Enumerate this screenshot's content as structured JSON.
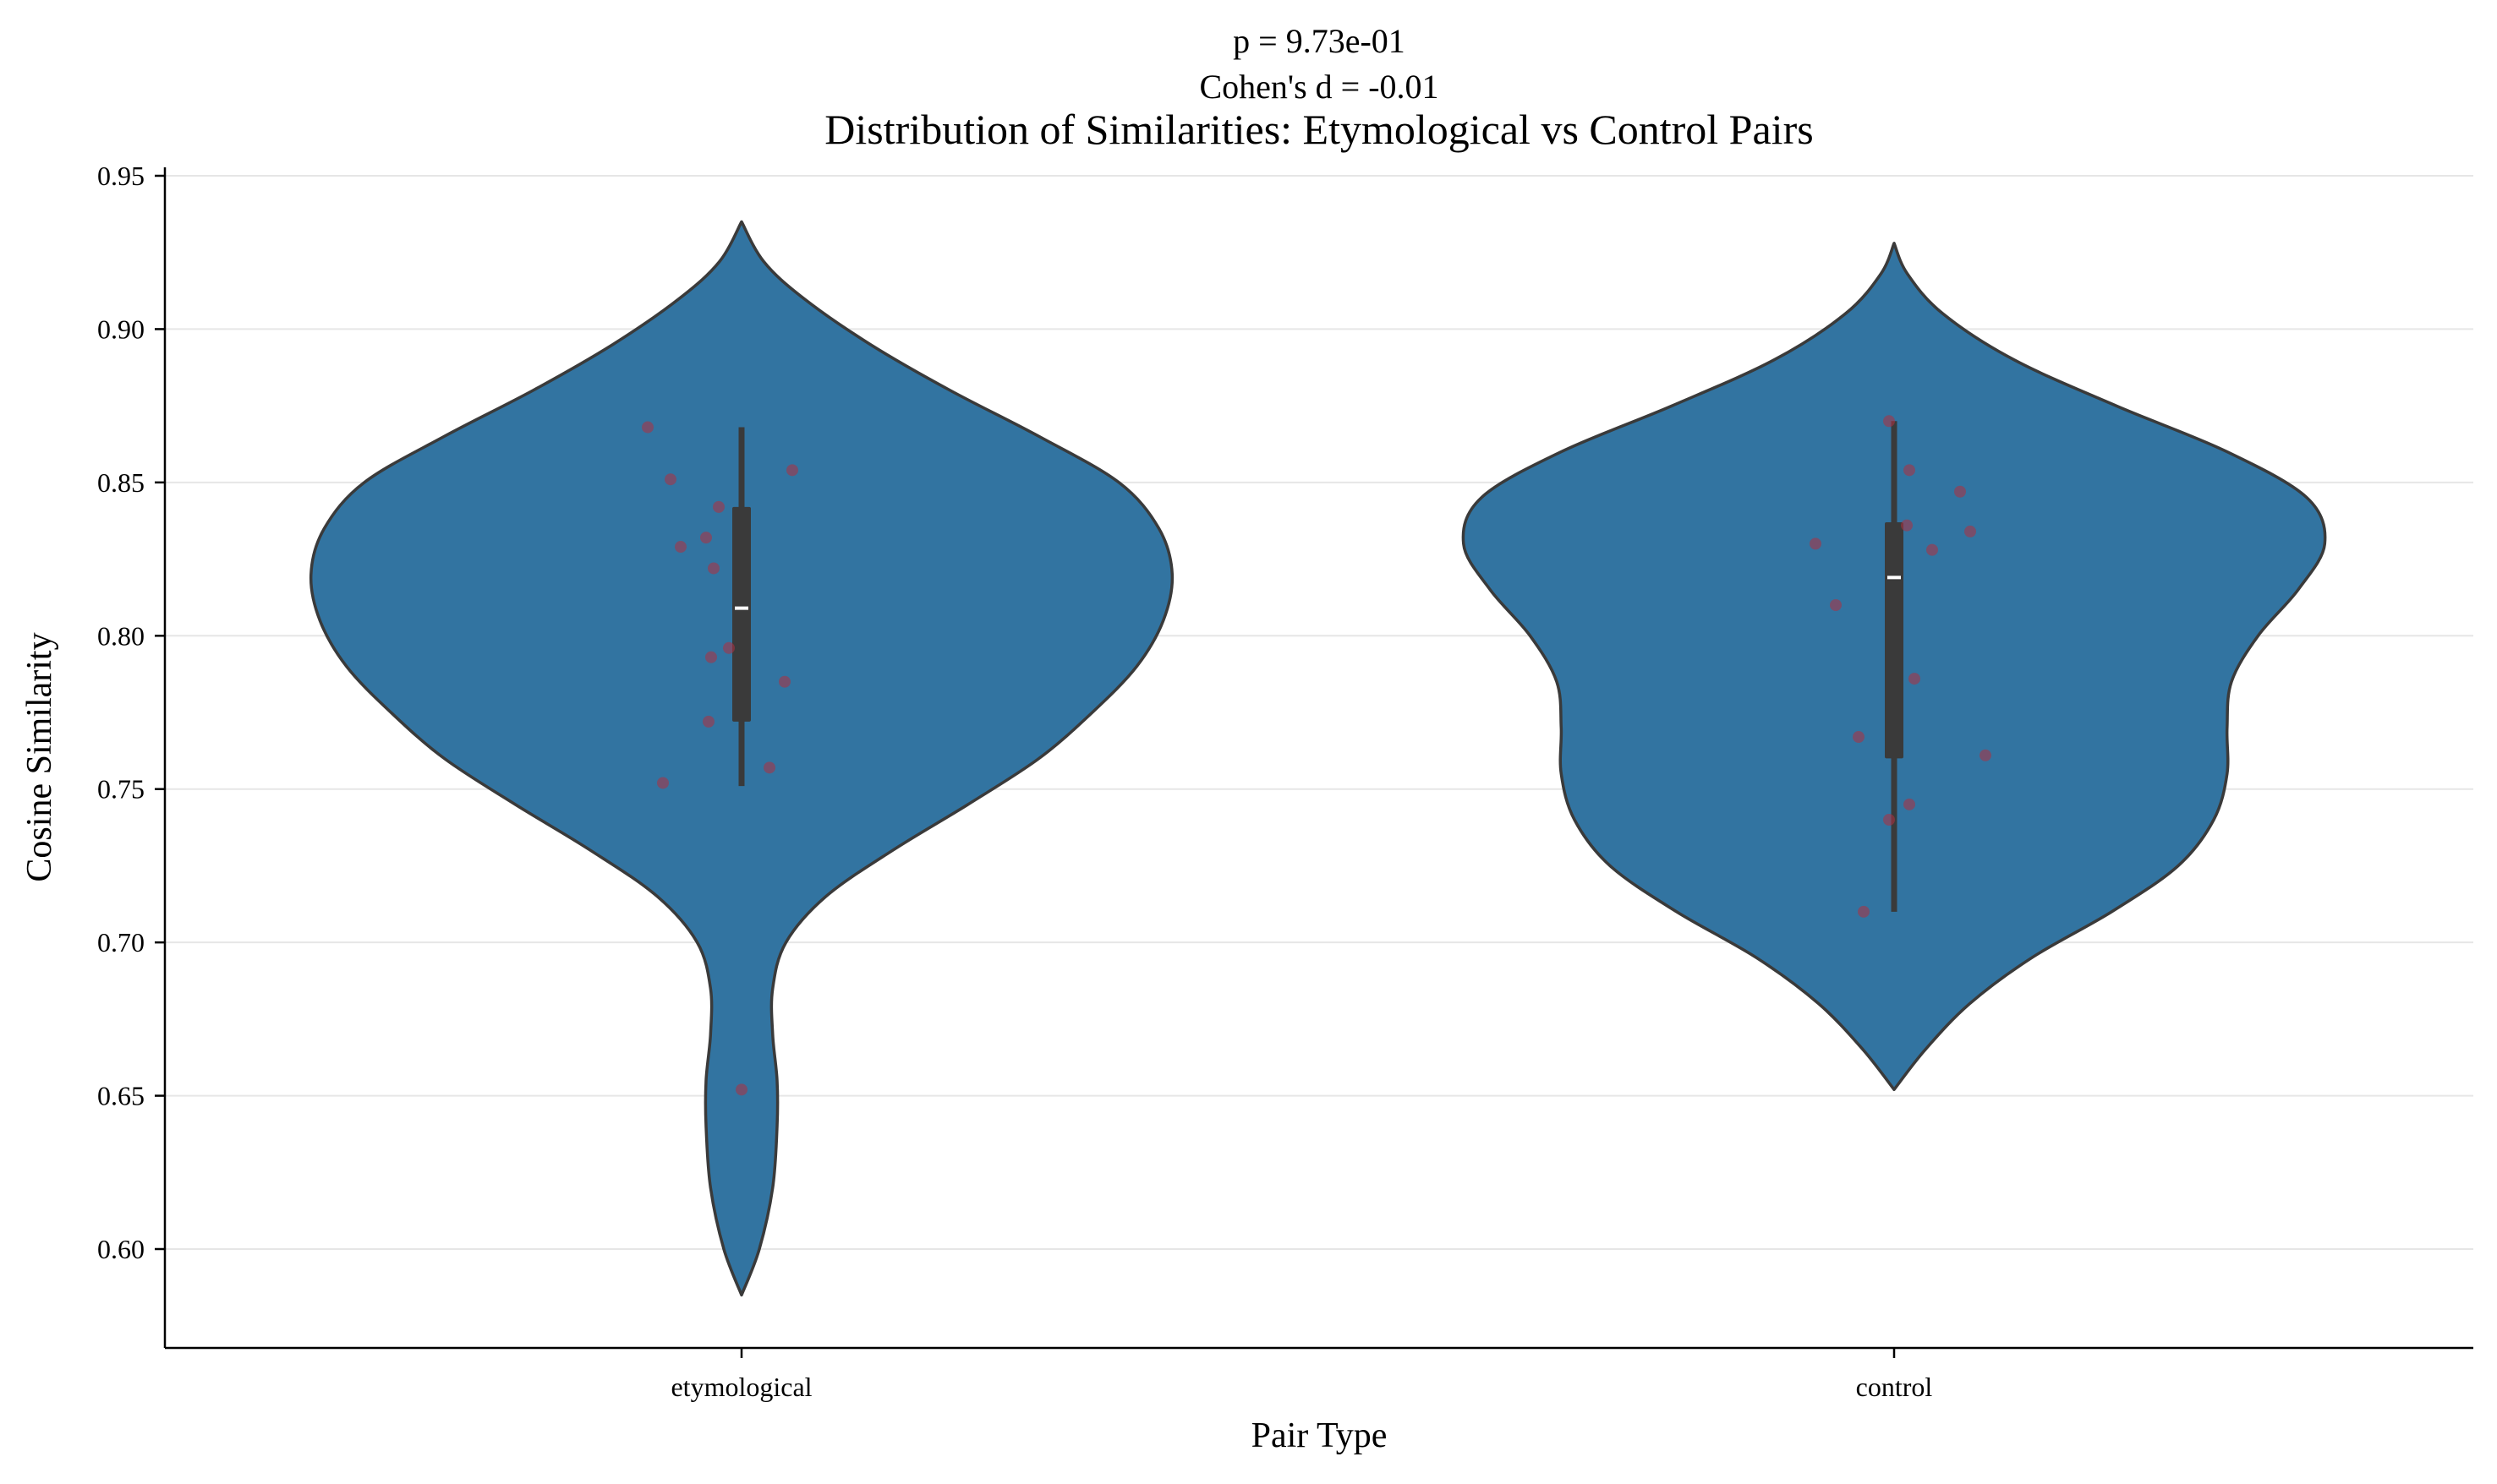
{
  "chart_data": {
    "type": "violin",
    "title_lines": [
      "p = 9.73e-01",
      "Cohen's d = -0.01"
    ],
    "title": "Distribution of Similarities: Etymological vs Control Pairs",
    "xlabel": "Pair Type",
    "ylabel": "Cosine Similarity",
    "categories": [
      "etymological",
      "control"
    ],
    "ylim": [
      0.567,
      0.953
    ],
    "yticks": [
      0.6,
      0.65,
      0.7,
      0.75,
      0.8,
      0.85,
      0.9,
      0.95
    ],
    "ytick_labels": [
      "0.60",
      "0.65",
      "0.70",
      "0.75",
      "0.80",
      "0.85",
      "0.90",
      "0.95"
    ],
    "grid": "y",
    "colors": {
      "violin_fill": "#3274a1",
      "violin_edge": "#3a3a3a",
      "box": "#3a3a3a",
      "median": "#ffffff",
      "points": "#b03040",
      "grid": "#e6e6e6"
    },
    "violins": [
      {
        "category": "etymological",
        "range": [
          0.585,
          0.935
        ],
        "profile": [
          [
            0.585,
            0.0
          ],
          [
            0.6,
            0.04
          ],
          [
            0.62,
            0.07
          ],
          [
            0.64,
            0.08
          ],
          [
            0.655,
            0.08
          ],
          [
            0.67,
            0.07
          ],
          [
            0.685,
            0.07
          ],
          [
            0.7,
            0.1
          ],
          [
            0.715,
            0.19
          ],
          [
            0.73,
            0.34
          ],
          [
            0.745,
            0.51
          ],
          [
            0.76,
            0.67
          ],
          [
            0.775,
            0.79
          ],
          [
            0.79,
            0.89
          ],
          [
            0.805,
            0.95
          ],
          [
            0.82,
            0.97
          ],
          [
            0.835,
            0.94
          ],
          [
            0.85,
            0.85
          ],
          [
            0.865,
            0.67
          ],
          [
            0.88,
            0.47
          ],
          [
            0.895,
            0.29
          ],
          [
            0.91,
            0.14
          ],
          [
            0.922,
            0.05
          ],
          [
            0.935,
            0.0
          ]
        ],
        "box": {
          "q1": 0.772,
          "median": 0.809,
          "q3": 0.842,
          "whisker_low": 0.751,
          "whisker_high": 0.868
        },
        "points": [
          {
            "x": -0.37,
            "y": 0.868
          },
          {
            "x": -0.28,
            "y": 0.851
          },
          {
            "x": 0.2,
            "y": 0.854
          },
          {
            "x": -0.09,
            "y": 0.842
          },
          {
            "x": -0.14,
            "y": 0.832
          },
          {
            "x": -0.24,
            "y": 0.829
          },
          {
            "x": -0.11,
            "y": 0.822
          },
          {
            "x": -0.05,
            "y": 0.796
          },
          {
            "x": -0.12,
            "y": 0.793
          },
          {
            "x": 0.17,
            "y": 0.785
          },
          {
            "x": -0.13,
            "y": 0.772
          },
          {
            "x": 0.11,
            "y": 0.757
          },
          {
            "x": -0.31,
            "y": 0.752
          },
          {
            "x": 0.0,
            "y": 0.652
          }
        ]
      },
      {
        "category": "control",
        "range": [
          0.652,
          0.928
        ],
        "profile": [
          [
            0.652,
            0.0
          ],
          [
            0.665,
            0.07
          ],
          [
            0.68,
            0.17
          ],
          [
            0.695,
            0.31
          ],
          [
            0.71,
            0.49
          ],
          [
            0.725,
            0.64
          ],
          [
            0.74,
            0.72
          ],
          [
            0.755,
            0.75
          ],
          [
            0.77,
            0.75
          ],
          [
            0.785,
            0.76
          ],
          [
            0.8,
            0.82
          ],
          [
            0.815,
            0.91
          ],
          [
            0.83,
            0.97
          ],
          [
            0.845,
            0.93
          ],
          [
            0.86,
            0.75
          ],
          [
            0.875,
            0.5
          ],
          [
            0.89,
            0.27
          ],
          [
            0.905,
            0.11
          ],
          [
            0.918,
            0.03
          ],
          [
            0.928,
            0.0
          ]
        ],
        "box": {
          "q1": 0.76,
          "median": 0.819,
          "q3": 0.837,
          "whisker_low": 0.71,
          "whisker_high": 0.87
        },
        "points": [
          {
            "x": -0.02,
            "y": 0.87
          },
          {
            "x": 0.05,
            "y": 0.836
          },
          {
            "x": 0.06,
            "y": 0.854
          },
          {
            "x": 0.26,
            "y": 0.847
          },
          {
            "x": 0.3,
            "y": 0.834
          },
          {
            "x": -0.31,
            "y": 0.83
          },
          {
            "x": 0.15,
            "y": 0.828
          },
          {
            "x": -0.23,
            "y": 0.81
          },
          {
            "x": 0.08,
            "y": 0.786
          },
          {
            "x": -0.14,
            "y": 0.767
          },
          {
            "x": 0.36,
            "y": 0.761
          },
          {
            "x": 0.06,
            "y": 0.745
          },
          {
            "x": -0.02,
            "y": 0.74
          },
          {
            "x": -0.12,
            "y": 0.71
          }
        ]
      }
    ]
  }
}
